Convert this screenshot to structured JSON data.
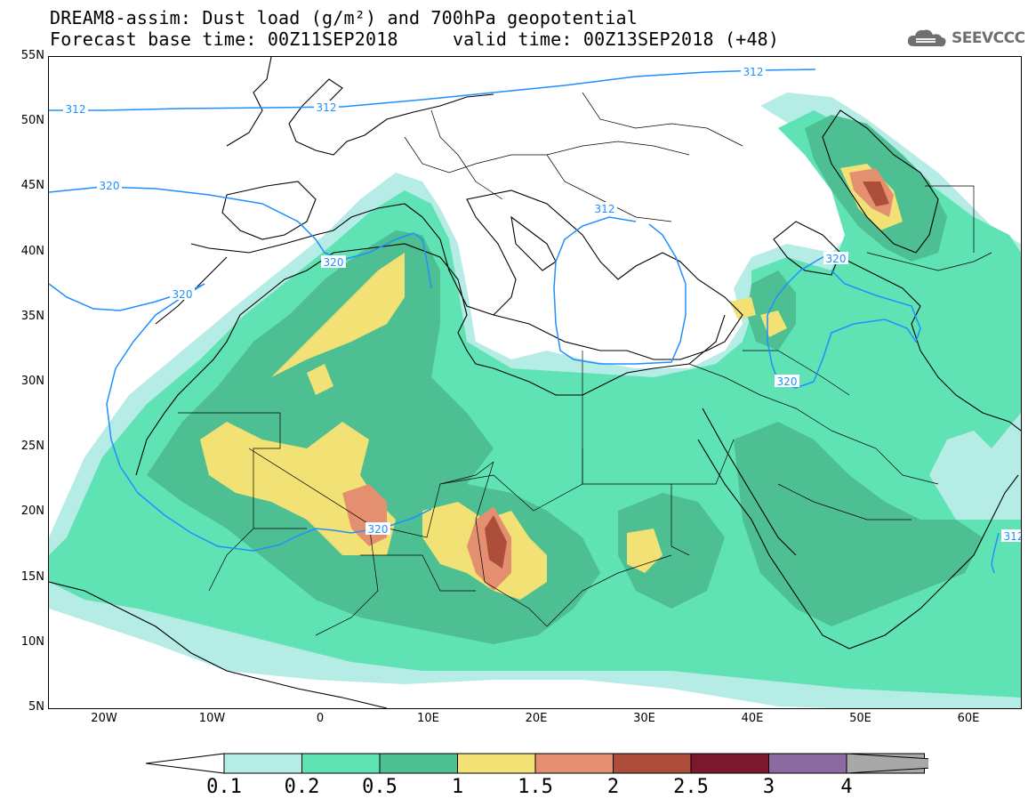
{
  "title": {
    "line1": "DREAM8-assim: Dust load (g/m²) and 700hPa geopotential",
    "line2_base": "Forecast base time: 00Z11SEP2018",
    "line2_valid": "valid time: 00Z13SEP2018 (+48)"
  },
  "logo": {
    "text": "SEEVCCC",
    "icon": "cloud-logo-icon"
  },
  "map": {
    "lat_labels": [
      "55N",
      "50N",
      "45N",
      "40N",
      "35N",
      "30N",
      "25N",
      "20N",
      "15N",
      "10N",
      "5N"
    ],
    "lon_labels": [
      "20W",
      "10W",
      "0",
      "10E",
      "20E",
      "30E",
      "40E",
      "50E",
      "60E"
    ],
    "lat_range": [
      5,
      55
    ],
    "lon_range": [
      -25,
      65
    ],
    "contour_labels": [
      "312",
      "312",
      "312",
      "312",
      "320",
      "320",
      "320",
      "320",
      "320",
      "312",
      "320"
    ],
    "contour_color": "#1e90ff",
    "dust_levels": [
      "0.1",
      "0.2",
      "0.5",
      "1",
      "1.5",
      "2",
      "2.5",
      "3",
      "4"
    ],
    "dust_colors": [
      "#b5ece6",
      "#5fe2b4",
      "#4dbf92",
      "#f2e276",
      "#e49070",
      "#ad4e3a",
      "#7a1830",
      "#8a6aa0",
      "#a8a8a8"
    ]
  },
  "colorbar": {
    "labels": [
      "0.1",
      "0.2",
      "0.5",
      "1",
      "1.5",
      "2",
      "2.5",
      "3",
      "4"
    ]
  }
}
